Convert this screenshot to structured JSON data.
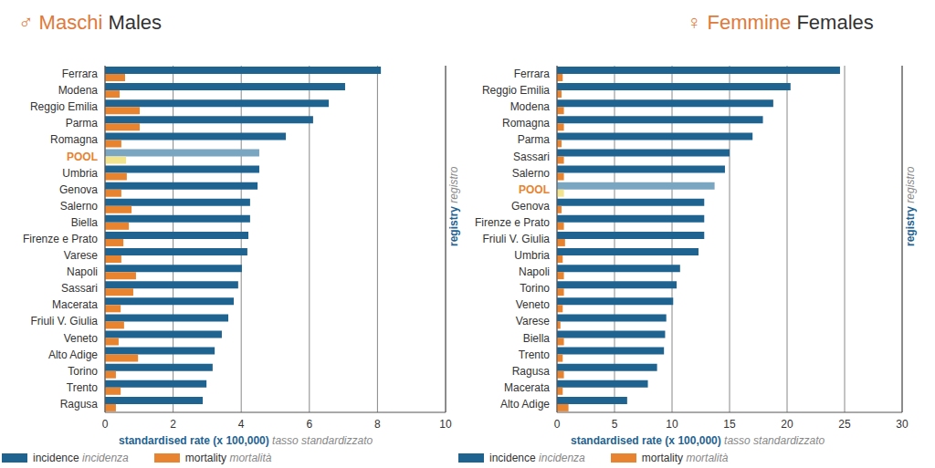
{
  "chart_data": [
    {
      "type": "bar",
      "title": "♂ Maschi",
      "subtitle": "Males",
      "orientation": "horizontal",
      "grid": true,
      "xlabel": "standardised rate (x 100,000)",
      "xlabel_alt": "tasso standardizzato",
      "ylabel": "registry",
      "ylabel_alt": "registro",
      "xlim": [
        0,
        10
      ],
      "xticks": [
        0,
        2,
        4,
        6,
        8,
        10
      ],
      "categories": [
        "Ferrara",
        "Modena",
        "Reggio Emilia",
        "Parma",
        "Romagna",
        "POOL",
        "Umbria",
        "Genova",
        "Salerno",
        "Biella",
        "Firenze e Prato",
        "Varese",
        "Napoli",
        "Sassari",
        "Macerata",
        "Friuli V. Giulia",
        "Veneto",
        "Alto Adige",
        "Torino",
        "Trento",
        "Ragusa"
      ],
      "series": [
        {
          "name": "incidence",
          "name_alt": "incidenza",
          "color": "#1f6391",
          "colors": [
            "#1f6391",
            "#1f6391",
            "#1f6391",
            "#1f6391",
            "#1f6391",
            "#7ba6c2",
            "#1f6391",
            "#1f6391",
            "#1f6391",
            "#1f6391",
            "#1f6391",
            "#1f6391",
            "#1f6391",
            "#1f6391",
            "#1f6391",
            "#1f6391",
            "#1f6391",
            "#1f6391",
            "#1f6391",
            "#1f6391",
            "#1f6391"
          ],
          "values": [
            8.1,
            7.05,
            6.57,
            6.11,
            5.31,
            4.53,
            4.53,
            4.48,
            4.26,
            4.26,
            4.21,
            4.18,
            4.02,
            3.91,
            3.78,
            3.62,
            3.43,
            3.22,
            3.16,
            2.98,
            2.87
          ]
        },
        {
          "name": "mortality",
          "name_alt": "mortalità",
          "color": "#e8832f",
          "colors": [
            "#e8832f",
            "#e8832f",
            "#e8832f",
            "#e8832f",
            "#e8832f",
            "#f2e38f",
            "#e8832f",
            "#e8832f",
            "#e8832f",
            "#e8832f",
            "#e8832f",
            "#e8832f",
            "#e8832f",
            "#e8832f",
            "#e8832f",
            "#e8832f",
            "#e8832f",
            "#e8832f",
            "#e8832f",
            "#e8832f",
            "#e8832f"
          ],
          "values": [
            0.59,
            0.43,
            1.02,
            1.02,
            0.48,
            0.62,
            0.64,
            0.48,
            0.78,
            0.7,
            0.54,
            0.48,
            0.91,
            0.83,
            0.46,
            0.56,
            0.4,
            0.97,
            0.32,
            0.46,
            0.32
          ]
        }
      ]
    },
    {
      "type": "bar",
      "title": "♀ Femmine",
      "subtitle": "Females",
      "orientation": "horizontal",
      "grid": true,
      "xlabel": "standardised rate (x 100,000)",
      "xlabel_alt": "tasso standardizzato",
      "ylabel": "registry",
      "ylabel_alt": "registro",
      "xlim": [
        0,
        30
      ],
      "xticks": [
        0,
        5,
        10,
        15,
        20,
        25,
        30
      ],
      "categories": [
        "Ferrara",
        "Reggio Emilia",
        "Modena",
        "Romagna",
        "Parma",
        "Sassari",
        "Salerno",
        "POOL",
        "Genova",
        "Firenze e Prato",
        "Friuli V. Giulia",
        "Umbria",
        "Napoli",
        "Torino",
        "Veneto",
        "Varese",
        "Biella",
        "Trento",
        "Ragusa",
        "Macerata",
        "Alto Adige"
      ],
      "series": [
        {
          "name": "incidence",
          "name_alt": "incidenza",
          "color": "#1f6391",
          "colors": [
            "#1f6391",
            "#1f6391",
            "#1f6391",
            "#1f6391",
            "#1f6391",
            "#1f6391",
            "#1f6391",
            "#7ba6c2",
            "#1f6391",
            "#1f6391",
            "#1f6391",
            "#1f6391",
            "#1f6391",
            "#1f6391",
            "#1f6391",
            "#1f6391",
            "#1f6391",
            "#1f6391",
            "#1f6391",
            "#1f6391",
            "#1f6391"
          ],
          "values": [
            24.6,
            20.3,
            18.8,
            17.9,
            17.0,
            15.0,
            14.6,
            13.7,
            12.8,
            12.8,
            12.8,
            12.3,
            10.7,
            10.4,
            10.1,
            9.5,
            9.4,
            9.3,
            8.7,
            7.9,
            6.1
          ]
        },
        {
          "name": "mortality",
          "name_alt": "mortalità",
          "color": "#e8832f",
          "colors": [
            "#e8832f",
            "#e8832f",
            "#e8832f",
            "#e8832f",
            "#e8832f",
            "#e8832f",
            "#e8832f",
            "#f2e38f",
            "#e8832f",
            "#e8832f",
            "#e8832f",
            "#e8832f",
            "#e8832f",
            "#e8832f",
            "#e8832f",
            "#e8832f",
            "#e8832f",
            "#e8832f",
            "#e8832f",
            "#e8832f",
            "#e8832f"
          ],
          "values": [
            0.5,
            0.4,
            0.6,
            0.6,
            0.4,
            0.6,
            0.6,
            0.6,
            0.4,
            0.6,
            0.7,
            0.5,
            0.6,
            0.6,
            0.5,
            0.3,
            0.6,
            0.5,
            0.6,
            0.5,
            1.0
          ]
        }
      ]
    }
  ]
}
